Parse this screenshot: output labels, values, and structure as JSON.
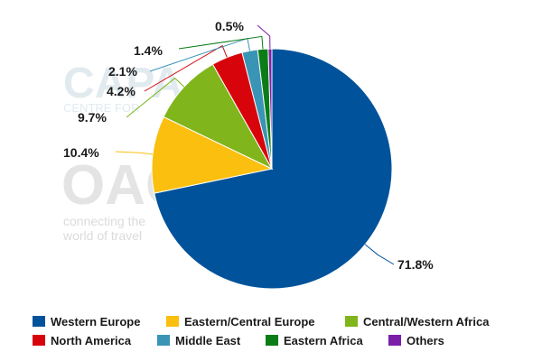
{
  "watermark": {
    "capa_text": "CAPA",
    "capa_sub": "CENTRE FOR",
    "oag_text": "OAG",
    "oag_tagline_1": "connecting the",
    "oag_tagline_2": "world of travel"
  },
  "chart_data": {
    "type": "pie",
    "title": "",
    "start_angle_deg": 0,
    "direction": "clockwise",
    "legend_position": "bottom",
    "slices": [
      {
        "name": "Western Europe",
        "value": 71.8,
        "label": "71.8%",
        "color": "#00529b"
      },
      {
        "name": "Eastern/Central Europe",
        "value": 10.4,
        "label": "10.4%",
        "color": "#fbbf0f"
      },
      {
        "name": "Central/Western Africa",
        "value": 9.7,
        "label": "9.7%",
        "color": "#80b51b"
      },
      {
        "name": "North America",
        "value": 4.2,
        "label": "4.2%",
        "color": "#d7050b"
      },
      {
        "name": "Middle East",
        "value": 2.1,
        "label": "2.1%",
        "color": "#3a94b5"
      },
      {
        "name": "Eastern Africa",
        "value": 1.4,
        "label": "1.4%",
        "color": "#0a7d16"
      },
      {
        "name": "Others",
        "value": 0.5,
        "label": "0.5%",
        "color": "#7b1fa8"
      }
    ]
  }
}
